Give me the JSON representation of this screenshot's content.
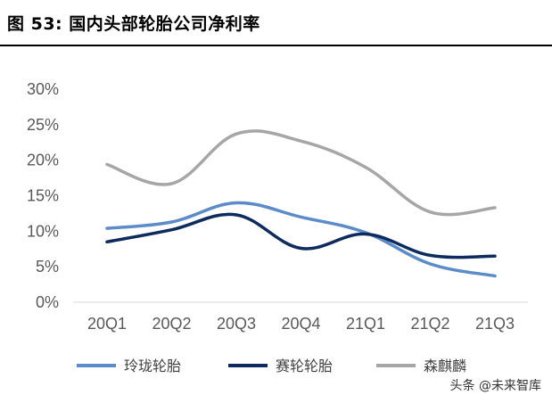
{
  "header": {
    "title": "图 53:  国内头部轮胎公司净利率"
  },
  "watermark": "头条 @未来智库",
  "chart_data": {
    "type": "line",
    "categories": [
      "20Q1",
      "20Q2",
      "20Q3",
      "20Q4",
      "21Q1",
      "21Q2",
      "21Q3"
    ],
    "y_tick_labels": [
      "0%",
      "5%",
      "10%",
      "15%",
      "20%",
      "25%",
      "30%"
    ],
    "ylim": [
      0,
      30
    ],
    "y_unit": "%",
    "grid": false,
    "legend_position": "bottom",
    "smooth": true,
    "series": [
      {
        "name": "玲珑轮胎",
        "color": "#5B8BC9",
        "values": [
          10.4,
          11.3,
          14.0,
          12.0,
          9.8,
          5.4,
          3.7
        ]
      },
      {
        "name": "赛轮轮胎",
        "color": "#0D2B5E",
        "values": [
          8.5,
          10.2,
          12.3,
          7.6,
          9.6,
          6.6,
          6.5
        ]
      },
      {
        "name": "森麒麟",
        "color": "#A6A6A6",
        "values": [
          19.4,
          16.7,
          23.7,
          22.7,
          19.0,
          12.7,
          13.3
        ]
      }
    ]
  }
}
